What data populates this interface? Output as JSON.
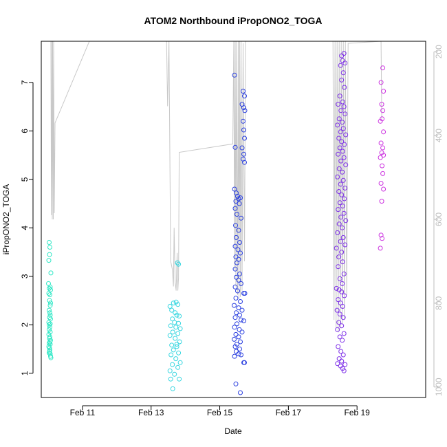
{
  "chart_data": {
    "type": "scatter",
    "title": "ATOM2 Northbound iPropONO2_TOGA",
    "xlabel": "Date",
    "ylabel": "iPropONO2_TOGA",
    "x_unit": "day of February",
    "xlim": [
      9.8,
      21.0
    ],
    "ylim": [
      0.5,
      7.85
    ],
    "x_ticks": [
      {
        "value": 11,
        "label": "Feb 11"
      },
      {
        "value": 13,
        "label": "Feb 13"
      },
      {
        "value": 15,
        "label": "Feb 15"
      },
      {
        "value": 17,
        "label": "Feb 17"
      },
      {
        "value": 19,
        "label": "Feb 19"
      }
    ],
    "y_ticks": [
      1,
      2,
      3,
      4,
      5,
      6,
      7
    ],
    "right_axis": {
      "description": "pressure (inverted)",
      "range": [
        175,
        1025
      ],
      "ticks": [
        200,
        400,
        600,
        800,
        1000
      ],
      "color": "#bebebe"
    },
    "grid": false,
    "legend": "none",
    "altitude_trace": {
      "color": "#c8c8c8",
      "points": [
        [
          10.08,
          175
        ],
        [
          10.09,
          460
        ],
        [
          10.1,
          590
        ],
        [
          10.11,
          175
        ],
        [
          10.12,
          600
        ],
        [
          10.13,
          175
        ],
        [
          10.15,
          600
        ],
        [
          10.16,
          175
        ],
        [
          10.18,
          585
        ],
        [
          10.2,
          370
        ],
        [
          11.2,
          175
        ],
        [
          13.45,
          175
        ],
        [
          13.48,
          330
        ],
        [
          13.52,
          175
        ],
        [
          13.57,
          700
        ],
        [
          13.62,
          720
        ],
        [
          13.65,
          760
        ],
        [
          13.67,
          620
        ],
        [
          13.7,
          750
        ],
        [
          13.73,
          770
        ],
        [
          13.76,
          680
        ],
        [
          13.78,
          770
        ],
        [
          13.8,
          740
        ],
        [
          13.82,
          440
        ],
        [
          15.38,
          420
        ],
        [
          15.41,
          175
        ],
        [
          15.43,
          720
        ],
        [
          15.45,
          175
        ],
        [
          15.47,
          760
        ],
        [
          15.49,
          175
        ],
        [
          15.52,
          780
        ],
        [
          15.54,
          175
        ],
        [
          15.56,
          790
        ],
        [
          15.58,
          175
        ],
        [
          15.6,
          785
        ],
        [
          15.62,
          175
        ],
        [
          15.65,
          770
        ],
        [
          15.68,
          180
        ],
        [
          15.72,
          700
        ],
        [
          15.75,
          175
        ],
        [
          18.3,
          175
        ],
        [
          18.33,
          840
        ],
        [
          18.36,
          175
        ],
        [
          18.39,
          860
        ],
        [
          18.42,
          175
        ],
        [
          18.45,
          870
        ],
        [
          18.48,
          175
        ],
        [
          18.51,
          860
        ],
        [
          18.54,
          175
        ],
        [
          18.57,
          850
        ],
        [
          18.6,
          175
        ],
        [
          18.63,
          840
        ],
        [
          18.66,
          175
        ],
        [
          18.7,
          780
        ],
        [
          18.74,
          180
        ],
        [
          19.7,
          175
        ],
        [
          19.72,
          360
        ]
      ]
    },
    "series": [
      {
        "color": "#2fe8c6",
        "points": [
          [
            10.03,
            3.7
          ],
          [
            10.04,
            3.45
          ],
          [
            10.05,
            3.6
          ],
          [
            10.02,
            3.33
          ],
          [
            10.08,
            3.07
          ],
          [
            10.01,
            2.85
          ],
          [
            10.03,
            2.75
          ],
          [
            10.06,
            2.78
          ],
          [
            10.07,
            2.72
          ],
          [
            10.02,
            2.65
          ],
          [
            10.05,
            2.62
          ],
          [
            10.04,
            2.5
          ],
          [
            10.07,
            2.45
          ],
          [
            10.06,
            2.4
          ],
          [
            10.03,
            2.3
          ],
          [
            10.05,
            2.25
          ],
          [
            10.04,
            2.15
          ],
          [
            10.07,
            2.12
          ],
          [
            10.02,
            2.05
          ],
          [
            10.06,
            2.02
          ],
          [
            10.05,
            1.95
          ],
          [
            10.03,
            1.9
          ],
          [
            10.06,
            1.85
          ],
          [
            10.02,
            1.8
          ],
          [
            10.05,
            1.75
          ],
          [
            10.04,
            1.72
          ],
          [
            10.07,
            1.68
          ],
          [
            10.03,
            1.62
          ],
          [
            10.06,
            1.6
          ],
          [
            10.02,
            1.55
          ],
          [
            10.04,
            1.52
          ],
          [
            10.05,
            1.48
          ],
          [
            10.03,
            1.42
          ],
          [
            10.06,
            1.4
          ],
          [
            10.07,
            1.35
          ],
          [
            10.08,
            1.32
          ],
          [
            10.04,
            1.45
          ],
          [
            10.06,
            2.2
          ],
          [
            10.03,
            2.0
          ],
          [
            10.05,
            1.65
          ]
        ]
      },
      {
        "color": "#36d6e0",
        "points": [
          [
            13.77,
            3.28
          ],
          [
            13.8,
            3.25
          ],
          [
            13.65,
            2.45
          ],
          [
            13.73,
            2.47
          ],
          [
            13.78,
            2.42
          ],
          [
            13.55,
            2.38
          ],
          [
            13.6,
            2.3
          ],
          [
            13.7,
            2.25
          ],
          [
            13.75,
            2.2
          ],
          [
            13.82,
            2.18
          ],
          [
            13.62,
            2.12
          ],
          [
            13.68,
            2.05
          ],
          [
            13.8,
            2.03
          ],
          [
            13.57,
            1.98
          ],
          [
            13.72,
            1.95
          ],
          [
            13.85,
            1.92
          ],
          [
            13.63,
            1.85
          ],
          [
            13.78,
            1.82
          ],
          [
            13.55,
            1.78
          ],
          [
            13.7,
            1.72
          ],
          [
            13.83,
            1.65
          ],
          [
            13.6,
            1.58
          ],
          [
            13.75,
            1.55
          ],
          [
            13.65,
            1.48
          ],
          [
            13.8,
            1.42
          ],
          [
            13.58,
            1.38
          ],
          [
            13.72,
            1.3
          ],
          [
            13.85,
            1.22
          ],
          [
            13.62,
            1.18
          ],
          [
            13.78,
            1.12
          ],
          [
            13.55,
            1.05
          ],
          [
            13.68,
            0.98
          ],
          [
            13.82,
            0.88
          ],
          [
            13.57,
            0.88
          ],
          [
            13.63,
            0.68
          ],
          [
            13.75,
            1.6
          ]
        ]
      },
      {
        "color": "#2a3fe0",
        "points": [
          [
            15.43,
            7.15
          ],
          [
            15.68,
            6.82
          ],
          [
            15.72,
            6.72
          ],
          [
            15.65,
            6.55
          ],
          [
            15.7,
            6.48
          ],
          [
            15.73,
            6.42
          ],
          [
            15.68,
            6.2
          ],
          [
            15.7,
            6.02
          ],
          [
            15.72,
            5.85
          ],
          [
            15.45,
            5.66
          ],
          [
            15.65,
            5.65
          ],
          [
            15.7,
            5.52
          ],
          [
            15.68,
            5.42
          ],
          [
            15.72,
            5.35
          ],
          [
            15.43,
            4.8
          ],
          [
            15.48,
            4.72
          ],
          [
            15.52,
            4.65
          ],
          [
            15.55,
            4.6
          ],
          [
            15.6,
            4.62
          ],
          [
            15.47,
            4.55
          ],
          [
            15.57,
            4.5
          ],
          [
            15.45,
            4.4
          ],
          [
            15.5,
            4.28
          ],
          [
            15.62,
            4.2
          ],
          [
            15.46,
            4.05
          ],
          [
            15.55,
            3.95
          ],
          [
            15.48,
            3.8
          ],
          [
            15.58,
            3.7
          ],
          [
            15.45,
            3.62
          ],
          [
            15.53,
            3.55
          ],
          [
            15.6,
            3.48
          ],
          [
            15.47,
            3.4
          ],
          [
            15.55,
            3.35
          ],
          [
            15.5,
            3.28
          ],
          [
            15.45,
            3.15
          ],
          [
            15.58,
            3.05
          ],
          [
            15.48,
            2.98
          ],
          [
            15.55,
            2.92
          ],
          [
            15.62,
            2.85
          ],
          [
            15.45,
            2.78
          ],
          [
            15.52,
            2.7
          ],
          [
            15.7,
            2.65
          ],
          [
            15.73,
            2.65
          ],
          [
            15.47,
            2.55
          ],
          [
            15.6,
            2.48
          ],
          [
            15.42,
            2.4
          ],
          [
            15.55,
            2.35
          ],
          [
            15.65,
            2.3
          ],
          [
            15.48,
            2.25
          ],
          [
            15.58,
            2.2
          ],
          [
            15.45,
            2.15
          ],
          [
            15.62,
            2.1
          ],
          [
            15.7,
            2.08
          ],
          [
            15.5,
            2.02
          ],
          [
            15.43,
            1.95
          ],
          [
            15.57,
            1.9
          ],
          [
            15.65,
            1.85
          ],
          [
            15.47,
            1.8
          ],
          [
            15.55,
            1.75
          ],
          [
            15.42,
            1.7
          ],
          [
            15.6,
            1.65
          ],
          [
            15.5,
            1.6
          ],
          [
            15.45,
            1.55
          ],
          [
            15.58,
            1.5
          ],
          [
            15.48,
            1.45
          ],
          [
            15.55,
            1.4
          ],
          [
            15.43,
            1.35
          ],
          [
            15.62,
            1.38
          ],
          [
            15.7,
            1.22
          ],
          [
            15.72,
            1.22
          ],
          [
            15.47,
            0.78
          ],
          [
            15.6,
            0.6
          ]
        ]
      },
      {
        "color": "#7d2ee8",
        "points": [
          [
            18.62,
            7.6
          ],
          [
            18.55,
            7.55
          ],
          [
            18.58,
            7.45
          ],
          [
            18.65,
            7.4
          ],
          [
            18.52,
            7.35
          ],
          [
            18.6,
            7.2
          ],
          [
            18.55,
            7.05
          ],
          [
            18.63,
            6.9
          ],
          [
            18.5,
            6.72
          ],
          [
            18.58,
            6.6
          ],
          [
            18.45,
            6.55
          ],
          [
            18.62,
            6.5
          ],
          [
            18.53,
            6.42
          ],
          [
            18.65,
            6.35
          ],
          [
            18.48,
            6.25
          ],
          [
            18.57,
            6.18
          ],
          [
            18.43,
            6.12
          ],
          [
            18.6,
            6.05
          ],
          [
            18.52,
            5.98
          ],
          [
            18.67,
            5.92
          ],
          [
            18.47,
            5.85
          ],
          [
            18.55,
            5.78
          ],
          [
            18.63,
            5.72
          ],
          [
            18.5,
            5.65
          ],
          [
            18.58,
            5.58
          ],
          [
            18.45,
            5.52
          ],
          [
            18.62,
            5.45
          ],
          [
            18.53,
            5.38
          ],
          [
            18.67,
            5.3
          ],
          [
            18.48,
            5.22
          ],
          [
            18.57,
            5.15
          ],
          [
            18.43,
            5.05
          ],
          [
            18.6,
            4.98
          ],
          [
            18.52,
            4.9
          ],
          [
            18.65,
            4.82
          ],
          [
            18.47,
            4.75
          ],
          [
            18.55,
            4.68
          ],
          [
            18.63,
            4.6
          ],
          [
            18.5,
            4.52
          ],
          [
            18.58,
            4.45
          ],
          [
            18.45,
            4.38
          ],
          [
            18.62,
            4.3
          ],
          [
            18.53,
            4.22
          ],
          [
            18.67,
            4.15
          ],
          [
            18.48,
            4.08
          ],
          [
            18.57,
            4.0
          ],
          [
            18.43,
            3.9
          ],
          [
            18.6,
            3.8
          ],
          [
            18.52,
            3.72
          ],
          [
            18.65,
            3.65
          ],
          [
            18.4,
            3.58
          ],
          [
            18.55,
            3.5
          ],
          [
            18.47,
            3.4
          ],
          [
            18.58,
            3.3
          ],
          [
            18.45,
            3.2
          ],
          [
            18.62,
            3.05
          ],
          [
            18.5,
            2.95
          ],
          [
            18.57,
            2.85
          ],
          [
            18.4,
            2.75
          ],
          [
            18.48,
            2.72
          ],
          [
            18.55,
            2.68
          ],
          [
            18.63,
            2.6
          ],
          [
            18.45,
            2.52
          ],
          [
            18.52,
            2.45
          ],
          [
            18.58,
            2.38
          ],
          [
            18.42,
            2.3
          ],
          [
            18.5,
            2.22
          ],
          [
            18.6,
            2.15
          ],
          [
            18.47,
            2.05
          ],
          [
            18.55,
            1.98
          ],
          [
            18.43,
            1.9
          ],
          [
            18.62,
            1.82
          ],
          [
            18.5,
            1.75
          ],
          [
            18.57,
            1.68
          ],
          [
            18.45,
            1.55
          ],
          [
            18.53,
            1.45
          ],
          [
            18.6,
            1.38
          ],
          [
            18.48,
            1.3
          ],
          [
            18.55,
            1.25
          ],
          [
            18.43,
            1.2
          ],
          [
            18.65,
            1.18
          ],
          [
            18.52,
            1.15
          ],
          [
            18.58,
            1.1
          ],
          [
            18.62,
            1.05
          ]
        ]
      },
      {
        "color": "#cc33e0",
        "points": [
          [
            19.75,
            7.3
          ],
          [
            19.7,
            7.0
          ],
          [
            19.77,
            6.82
          ],
          [
            19.72,
            6.55
          ],
          [
            19.75,
            6.42
          ],
          [
            19.68,
            6.2
          ],
          [
            19.73,
            6.25
          ],
          [
            19.77,
            5.98
          ],
          [
            19.7,
            5.75
          ],
          [
            19.75,
            5.65
          ],
          [
            19.72,
            5.55
          ],
          [
            19.77,
            5.5
          ],
          [
            19.68,
            5.45
          ],
          [
            19.73,
            5.28
          ],
          [
            19.75,
            5.12
          ],
          [
            19.7,
            4.92
          ],
          [
            19.77,
            4.8
          ],
          [
            19.72,
            4.55
          ],
          [
            19.7,
            3.85
          ],
          [
            19.73,
            3.78
          ],
          [
            19.68,
            3.58
          ]
        ]
      }
    ]
  }
}
